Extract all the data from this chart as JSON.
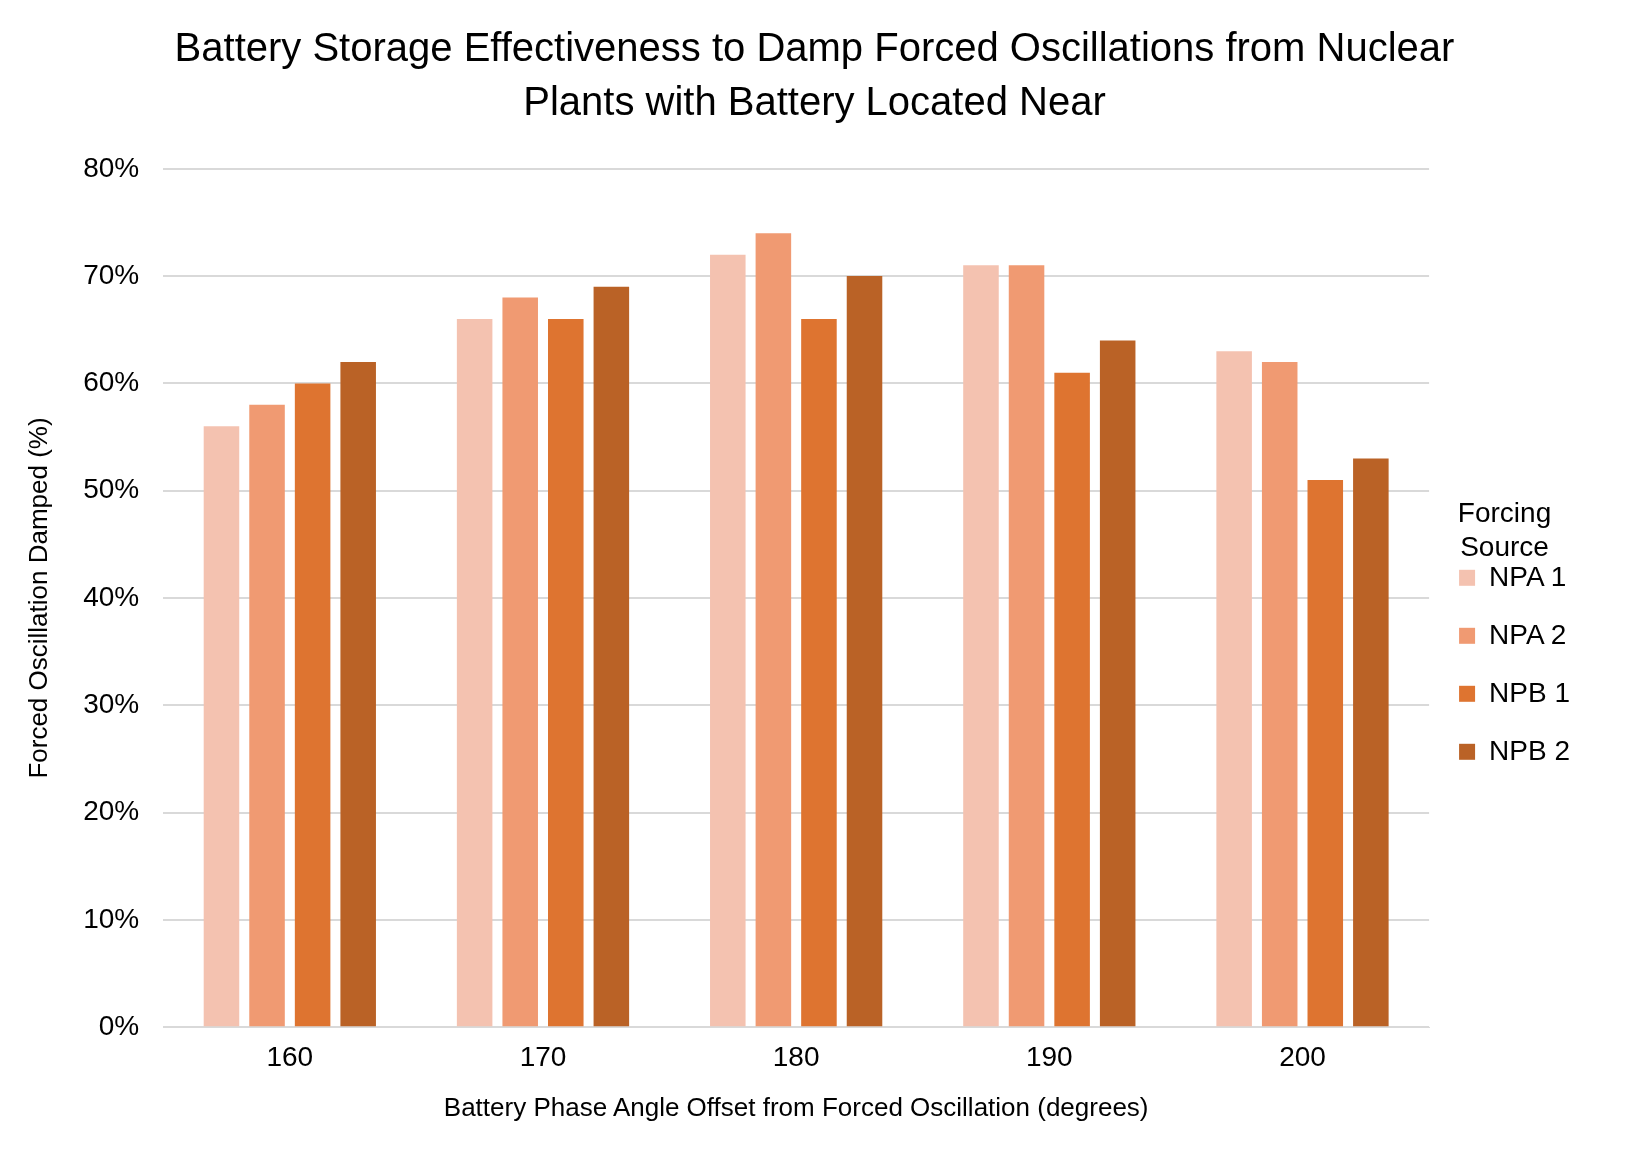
{
  "chart_data": {
    "type": "bar",
    "title": "Battery Storage Effectiveness to Damp Forced Oscillations from Nuclear Plants with Battery Located Near",
    "xlabel": "Battery Phase Angle Offset from Forced Oscillation (degrees)",
    "ylabel": "Forced Oscillation Damped (%)",
    "legend_title": "Forcing Source",
    "categories": [
      "160",
      "170",
      "180",
      "190",
      "200"
    ],
    "series": [
      {
        "name": "NPA 1",
        "color": "#f4c2b0",
        "values": [
          56,
          66,
          72,
          71,
          63
        ]
      },
      {
        "name": "NPA 2",
        "color": "#f09a72",
        "values": [
          58,
          68,
          74,
          71,
          62
        ]
      },
      {
        "name": "NPB 1",
        "color": "#de7430",
        "values": [
          60,
          66,
          66,
          61,
          51
        ]
      },
      {
        "name": "NPB 2",
        "color": "#ba6226",
        "values": [
          62,
          69,
          70,
          64,
          53
        ]
      }
    ],
    "ylim": [
      0,
      80
    ],
    "yticks": [
      {
        "value": 0,
        "label": "0%"
      },
      {
        "value": 10,
        "label": "10%"
      },
      {
        "value": 20,
        "label": "20%"
      },
      {
        "value": 30,
        "label": "30%"
      },
      {
        "value": 40,
        "label": "40%"
      },
      {
        "value": 50,
        "label": "50%"
      },
      {
        "value": 60,
        "label": "60%"
      },
      {
        "value": 70,
        "label": "70%"
      },
      {
        "value": 80,
        "label": "80%"
      }
    ],
    "grid": "y",
    "legend": "right"
  }
}
